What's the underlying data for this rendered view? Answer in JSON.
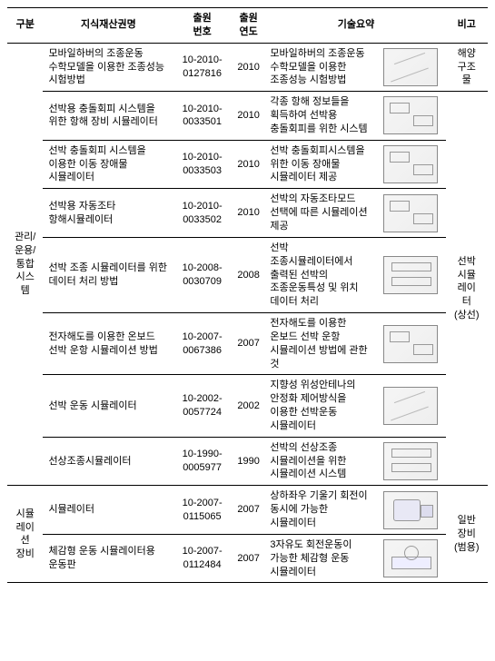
{
  "headers": {
    "cat": "구분",
    "name": "지식재산권명",
    "appno": "출원\n번호",
    "year": "출원\n연도",
    "summary": "기술요약",
    "note": "비고"
  },
  "cat1": {
    "label": "관리/\n운용/\n통합\n시스\n템"
  },
  "cat2": {
    "label": "시뮬\n레이\n션\n장비"
  },
  "note1": {
    "label": "해양\n구조\n물"
  },
  "note2": {
    "label": "선박\n시뮬\n레이\n터\n(상선)"
  },
  "note3": {
    "label": "일반\n장비\n(범용)"
  },
  "rows": [
    {
      "name": "모바일하버의 조종운동 수학모델을 이용한 조종성능 시험방법",
      "appno": "10-2010-\n0127816",
      "year": "2010",
      "summary": "모바일하버의 조종운동 수학모델을 이용한 조종성능 시험방법",
      "thumb": "t-diag"
    },
    {
      "name": "선박용 충돌회피 시스템을 위한 항해 장비 시뮬레이터",
      "appno": "10-2010-\n0033501",
      "year": "2010",
      "summary": "각종 항해 정보들을 획득하여 선박용 충돌회피를 위한 시스템",
      "thumb": "t-block"
    },
    {
      "name": "선박 충돌회피 시스템을 이용한 이동 장애물 시뮬레이터",
      "appno": "10-2010-\n0033503",
      "year": "2010",
      "summary": "선박 충돌회피시스템을 위한 이동 장애물 시뮬레이터 제공",
      "thumb": "t-block"
    },
    {
      "name": "선박용 자동조타 항해시뮬레이터",
      "appno": "10-2010-\n0033502",
      "year": "2010",
      "summary": "선박의 자동조타모드 선택에 따른 시뮬레이션 제공",
      "thumb": "t-block"
    },
    {
      "name": "선박 조종 시뮬레이터를 위한 데이터 처리 방법",
      "appno": "10-2008-\n0030709",
      "year": "2008",
      "summary": "선박 조종시뮬레이터에서 출력된 선박의 조종운동특성 및 위치 데이터 처리",
      "thumb": "t-flow"
    },
    {
      "name": "전자해도를 이용한 온보드 선박 운항 시뮬레이션 방법",
      "appno": "10-2007-\n0067386",
      "year": "2007",
      "summary": "전자해도를 이용한 온보드 선박 운항 시뮬레이션 방법에 관한 것",
      "thumb": "t-block"
    },
    {
      "name": "선박 운동 시뮬레이터",
      "appno": "10-2002-\n0057724",
      "year": "2002",
      "summary": "지향성 위성안테나의 안정화 제어방식을 이용한 선박운동 시뮬레이터",
      "thumb": "t-diag"
    },
    {
      "name": "선상조종시뮬레이터",
      "appno": "10-1990-\n0005977",
      "year": "1990",
      "summary": "선박의 선상조종 시뮬레이션을 위한 시뮬레이션 시스템",
      "thumb": "t-flow"
    },
    {
      "name": "시뮬레이터",
      "appno": "10-2007-\n0115065",
      "year": "2007",
      "summary": "상하좌우 기울기 회전이 동시에 가능한 시뮬레이터",
      "thumb": "t-dev"
    },
    {
      "name": "체감형 운동 시뮬레이터용 운동판",
      "appno": "10-2007-\n0112484",
      "year": "2007",
      "summary": "3자유도 회전운동이 가능한 체감형 운동 시뮬레이터",
      "thumb": "t-mech"
    }
  ]
}
